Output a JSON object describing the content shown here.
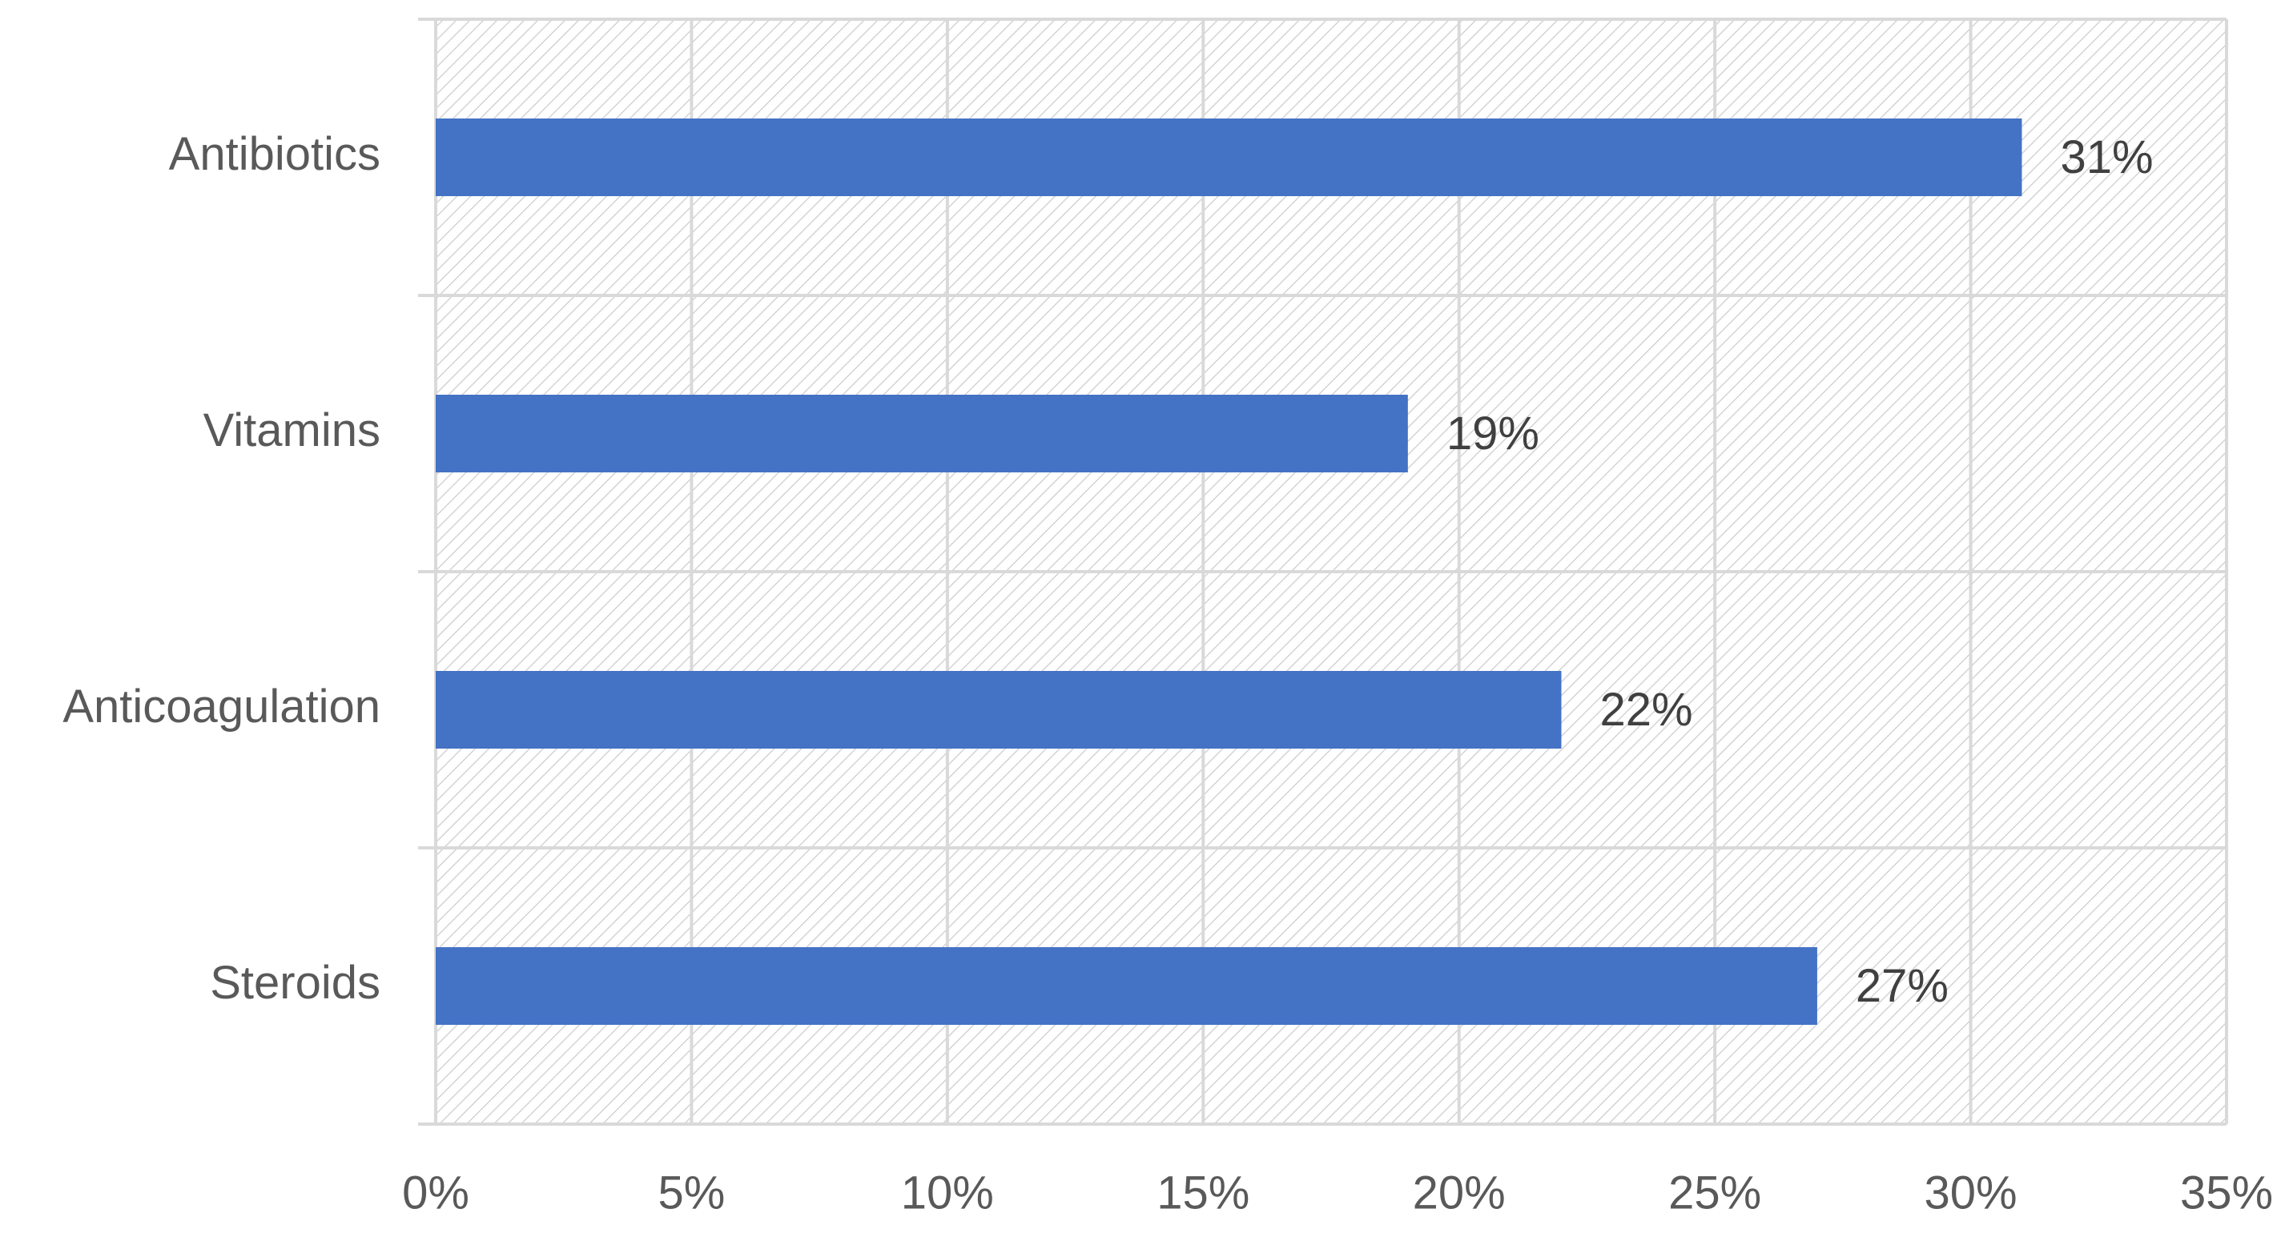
{
  "chart_data": {
    "type": "bar",
    "orientation": "horizontal",
    "categories": [
      "Antibiotics",
      "Vitamins",
      "Anticoagulation",
      "Steroids"
    ],
    "values": [
      31,
      19,
      22,
      27
    ],
    "value_labels": [
      "31%",
      "19%",
      "22%",
      "27%"
    ],
    "color": "#4472c4",
    "xlim": [
      0,
      35
    ],
    "xticks": [
      {
        "value": 0,
        "label": "0%"
      },
      {
        "value": 5,
        "label": "5%"
      },
      {
        "value": 10,
        "label": "10%"
      },
      {
        "value": 15,
        "label": "15%"
      },
      {
        "value": 20,
        "label": "20%"
      },
      {
        "value": 25,
        "label": "25%"
      },
      {
        "value": 30,
        "label": "30%"
      },
      {
        "value": 35,
        "label": "35%"
      }
    ],
    "grid": true
  }
}
